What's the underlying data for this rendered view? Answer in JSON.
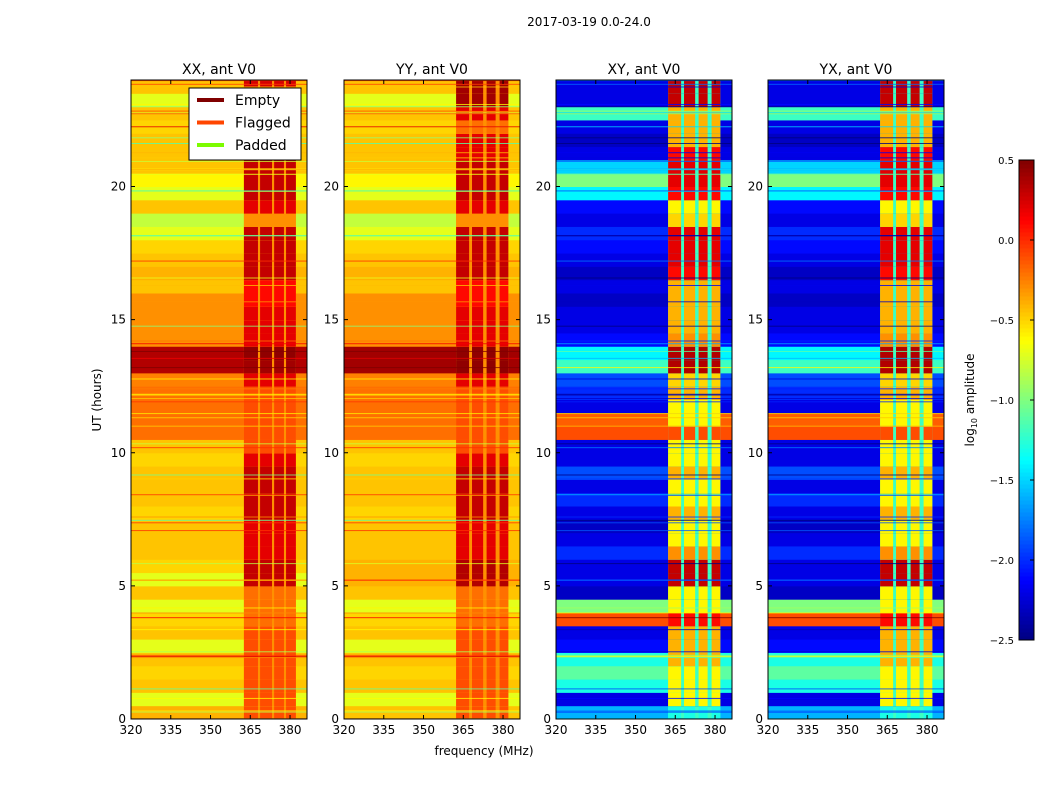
{
  "chart_data": {
    "type": "heatmap",
    "suptitle": "2017-03-19 0.0-24.0",
    "xlabel": "frequency (MHz)",
    "ylabel": "UT (hours)",
    "xlim": [
      320,
      386.4
    ],
    "ylim": [
      0,
      24
    ],
    "xticks": [
      "320",
      "335",
      "350",
      "365",
      "380"
    ],
    "yticks": [
      "0",
      "5",
      "10",
      "15",
      "20"
    ],
    "time_bin_hours": 0.5,
    "legend": {
      "placement": "upper-right of first panel",
      "entries": [
        {
          "label": "Empty",
          "color": "#800000"
        },
        {
          "label": "Flagged",
          "color": "#ff4500"
        },
        {
          "label": "Padded",
          "color": "#7cfc00"
        }
      ]
    },
    "colorbar": {
      "label_base": "log",
      "label_sub": "10",
      "label_rest": " amplitude",
      "range": [
        -2.5,
        0.5
      ],
      "ticks": [
        "0.5",
        "0.0",
        "−0.5",
        "−1.0",
        "−1.5",
        "−2.0",
        "−2.5"
      ],
      "tick_values": [
        0.5,
        0.0,
        -0.5,
        -1.0,
        -1.5,
        -2.0,
        -2.5
      ],
      "colormap": "jet"
    },
    "panels": [
      {
        "title": "XX, ant V0",
        "band_columns_mhz": [
          [
            362.6,
            367.9
          ],
          [
            368.7,
            373.2
          ],
          [
            374.0,
            377.7
          ],
          [
            378.5,
            382.2
          ]
        ],
        "background": [
          -0.4,
          -0.7,
          -0.45,
          -0.5,
          -0.45,
          -0.7,
          -0.45,
          -0.5,
          -0.7,
          -0.45,
          -0.7,
          -0.5,
          -0.45,
          -0.45,
          -0.45,
          -0.5,
          -0.45,
          -0.45,
          -0.45,
          -0.5,
          -0.45,
          -0.2,
          -0.2,
          -0.2,
          -0.2,
          -0.25,
          0.35,
          0.35,
          -0.3,
          -0.3,
          -0.3,
          -0.3,
          -0.45,
          -0.4,
          -0.45,
          -0.5,
          -0.7,
          -0.8,
          -0.45,
          -0.7,
          -0.6,
          -0.45,
          -0.45,
          -0.45,
          -0.5,
          -0.45,
          -0.7,
          -0.45
        ],
        "band": [
          -0.1,
          -0.1,
          -0.1,
          -0.1,
          -0.1,
          -0.1,
          -0.1,
          -0.2,
          -0.2,
          -0.2,
          0.3,
          0.3,
          0.2,
          0.2,
          0.2,
          0.3,
          0.3,
          0.3,
          0.3,
          0.2,
          -0.1,
          -0.1,
          -0.1,
          -0.1,
          -0.1,
          0.2,
          0.4,
          0.45,
          0.2,
          0.2,
          0.2,
          0.1,
          0.1,
          0.3,
          0.3,
          0.3,
          0.3,
          -0.3,
          0.2,
          0.3,
          0.3,
          0.3,
          0.2,
          0.2,
          -0.2,
          0.2,
          0.25,
          0.25
        ],
        "gap": -0.3
      },
      {
        "title": "YY, ant V0",
        "band_columns_mhz": [
          [
            362.3,
            367.2
          ],
          [
            368.3,
            372.5
          ],
          [
            373.8,
            377.2
          ],
          [
            378.7,
            382.0
          ]
        ],
        "background": [
          -0.45,
          -0.7,
          -0.45,
          -0.5,
          -0.45,
          -0.7,
          -0.45,
          -0.5,
          -0.7,
          -0.45,
          -0.4,
          -0.4,
          -0.45,
          -0.45,
          -0.45,
          -0.5,
          -0.45,
          -0.45,
          -0.45,
          -0.5,
          -0.45,
          -0.2,
          -0.2,
          -0.2,
          -0.2,
          -0.25,
          0.4,
          0.4,
          -0.3,
          -0.3,
          -0.3,
          -0.3,
          -0.45,
          -0.4,
          -0.45,
          -0.5,
          -0.7,
          -0.8,
          -0.45,
          -0.7,
          -0.6,
          -0.45,
          -0.45,
          -0.45,
          -0.5,
          -0.45,
          -0.7,
          -0.45
        ],
        "band": [
          -0.1,
          -0.1,
          -0.1,
          -0.1,
          -0.1,
          -0.1,
          -0.1,
          -0.2,
          -0.2,
          -0.2,
          0.35,
          0.35,
          0.2,
          0.2,
          0.2,
          0.3,
          0.3,
          0.3,
          0.3,
          0.2,
          -0.1,
          -0.1,
          -0.1,
          -0.1,
          -0.1,
          0.2,
          0.45,
          0.45,
          0.2,
          0.2,
          0.2,
          0.1,
          0.1,
          0.3,
          0.3,
          0.3,
          0.3,
          -0.3,
          0.2,
          0.3,
          0.3,
          0.3,
          0.2,
          0.2,
          -0.2,
          0.2,
          0.4,
          0.4
        ],
        "gap": -0.3
      },
      {
        "title": "XY, ant V0",
        "band_columns_mhz": [
          [
            362.3,
            367.2
          ],
          [
            368.3,
            372.5
          ],
          [
            373.8,
            377.2
          ],
          [
            378.7,
            382.0
          ]
        ],
        "background": [
          -1.6,
          -2.2,
          -1.3,
          -1.1,
          -1.3,
          -2.1,
          -2.2,
          -0.1,
          -1.0,
          -2.3,
          -2.2,
          -2.2,
          -2.0,
          -2.2,
          -2.3,
          -2.2,
          -2.0,
          -2.2,
          -1.9,
          -2.2,
          -2.2,
          -0.1,
          -0.15,
          -2.2,
          -2.0,
          -1.9,
          -1.2,
          -1.4,
          -2.1,
          -2.2,
          -2.2,
          -2.3,
          -2.2,
          -2.3,
          -2.2,
          -2.1,
          -2.0,
          -2.2,
          -2.1,
          -1.4,
          -1.0,
          -1.5,
          -2.2,
          -2.3,
          -2.2,
          -1.2,
          -2.2,
          -2.2
        ],
        "band": [
          -1.3,
          -0.6,
          -0.6,
          -0.6,
          -0.4,
          -0.4,
          -0.4,
          0.1,
          -0.6,
          -0.6,
          0.3,
          0.3,
          -0.3,
          -0.6,
          -0.6,
          -0.4,
          -0.6,
          -0.6,
          -0.4,
          -0.6,
          -0.6,
          -0.1,
          -0.6,
          -0.6,
          -0.4,
          -0.5,
          0.35,
          0.35,
          -0.3,
          -0.4,
          -0.4,
          -0.4,
          -0.4,
          0.1,
          0.2,
          0.2,
          0.2,
          -0.5,
          -0.6,
          0.1,
          0.2,
          0.2,
          0.1,
          -0.4,
          -0.4,
          -0.4,
          0.3,
          0.3
        ],
        "gap": -1.2
      },
      {
        "title": "YX, ant V0",
        "band_columns_mhz": [
          [
            362.3,
            367.2
          ],
          [
            368.3,
            372.5
          ],
          [
            373.8,
            377.2
          ],
          [
            378.7,
            382.0
          ]
        ],
        "background": [
          -1.6,
          -2.2,
          -1.3,
          -1.1,
          -1.3,
          -2.1,
          -2.2,
          -0.1,
          -1.0,
          -2.3,
          -2.2,
          -2.2,
          -2.0,
          -2.2,
          -2.3,
          -2.2,
          -2.0,
          -2.2,
          -1.9,
          -2.2,
          -2.2,
          -0.1,
          -0.15,
          -2.2,
          -2.0,
          -1.9,
          -1.2,
          -1.4,
          -2.1,
          -2.2,
          -2.2,
          -2.3,
          -2.2,
          -2.3,
          -2.2,
          -2.1,
          -2.0,
          -2.2,
          -2.1,
          -1.4,
          -1.0,
          -1.5,
          -2.2,
          -2.3,
          -2.2,
          -1.2,
          -2.2,
          -2.2
        ],
        "band": [
          -1.3,
          -0.6,
          -0.6,
          -0.6,
          -0.4,
          -0.4,
          -0.4,
          0.1,
          -0.6,
          -0.6,
          0.3,
          0.3,
          -0.3,
          -0.6,
          -0.6,
          -0.4,
          -0.6,
          -0.6,
          -0.4,
          -0.6,
          -0.6,
          -0.1,
          -0.6,
          -0.6,
          -0.4,
          -0.5,
          0.35,
          0.35,
          -0.3,
          -0.4,
          -0.4,
          -0.4,
          -0.4,
          0.1,
          0.2,
          0.2,
          0.2,
          -0.5,
          -0.6,
          0.1,
          0.2,
          0.2,
          0.1,
          -0.4,
          -0.4,
          -0.4,
          0.3,
          0.3
        ],
        "gap": -1.2
      }
    ]
  }
}
